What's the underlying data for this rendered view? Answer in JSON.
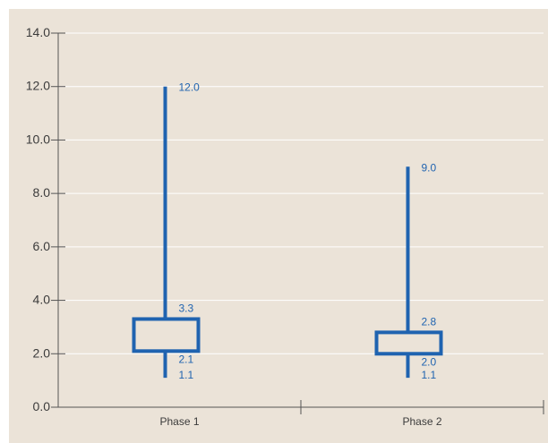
{
  "chart_data": {
    "type": "box",
    "title": "",
    "xlabel": "",
    "ylabel": "",
    "categories": [
      "Phase 1",
      "Phase 2"
    ],
    "boxes": [
      {
        "category": "Phase 1",
        "min": 1.1,
        "q1": 2.1,
        "q3": 3.3,
        "max": 12.0,
        "labels": {
          "min": "1.1",
          "q1": "2.1",
          "q3": "3.3",
          "max": "12.0"
        }
      },
      {
        "category": "Phase 2",
        "min": 1.1,
        "q1": 2.0,
        "q3": 2.8,
        "max": 9.0,
        "labels": {
          "min": "1.1",
          "q1": "2.0",
          "q3": "2.8",
          "max": "9.0"
        }
      }
    ],
    "y_ticks": [
      0,
      2,
      4,
      6,
      8,
      10,
      12,
      14
    ],
    "y_tick_labels": [
      "0.0",
      "2.0",
      "4.0",
      "6.0",
      "8.0",
      "10.0",
      "12.0",
      "14.0"
    ],
    "ylim": [
      0,
      14
    ],
    "grid": true,
    "colors": {
      "background": "#ebe3d8",
      "box": "#1f63b0",
      "label": "#1f63b0",
      "grid": "#ffffff",
      "axis": "#555555"
    }
  }
}
